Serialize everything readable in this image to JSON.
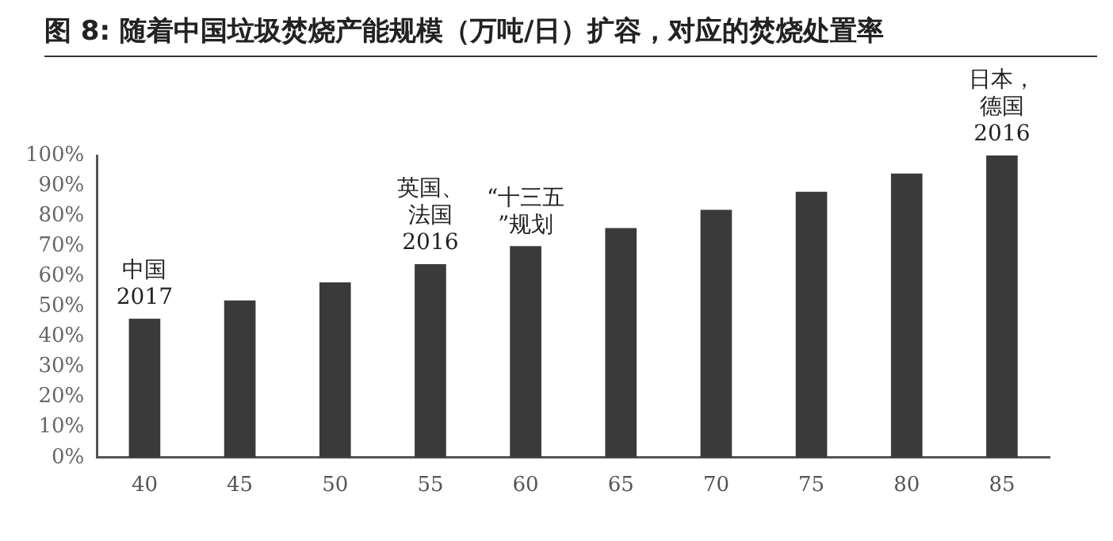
{
  "chart_data": {
    "type": "bar",
    "title": "图 8:  随着中国垃圾焚烧产能规模（万吨/日）扩容，对应的焚烧处置率",
    "categories": [
      "40",
      "45",
      "50",
      "55",
      "60",
      "65",
      "70",
      "75",
      "80",
      "85"
    ],
    "values": [
      46,
      52,
      58,
      64,
      70,
      76,
      82,
      88,
      94,
      100
    ],
    "color": "#3a3a3a",
    "ylim": [
      0,
      100
    ],
    "yticks": [
      {
        "value": 0,
        "label": "0%"
      },
      {
        "value": 10,
        "label": "10%"
      },
      {
        "value": 20,
        "label": "20%"
      },
      {
        "value": 30,
        "label": "30%"
      },
      {
        "value": 40,
        "label": "40%"
      },
      {
        "value": 50,
        "label": "50%"
      },
      {
        "value": 60,
        "label": "60%"
      },
      {
        "value": 70,
        "label": "70%"
      },
      {
        "value": 80,
        "label": "80%"
      },
      {
        "value": 90,
        "label": "90%"
      },
      {
        "value": 100,
        "label": "100%"
      }
    ],
    "grid": false,
    "legend": false,
    "annotations": [
      {
        "text": "中国2017",
        "x": "40",
        "y": 46
      },
      {
        "text": "英国、法国2016",
        "x": "55",
        "y": 64
      },
      {
        "text": "“十三五”规划",
        "x": "60",
        "y": 70
      },
      {
        "text": "日本，德国2016",
        "x": "85",
        "y": 100
      }
    ]
  }
}
